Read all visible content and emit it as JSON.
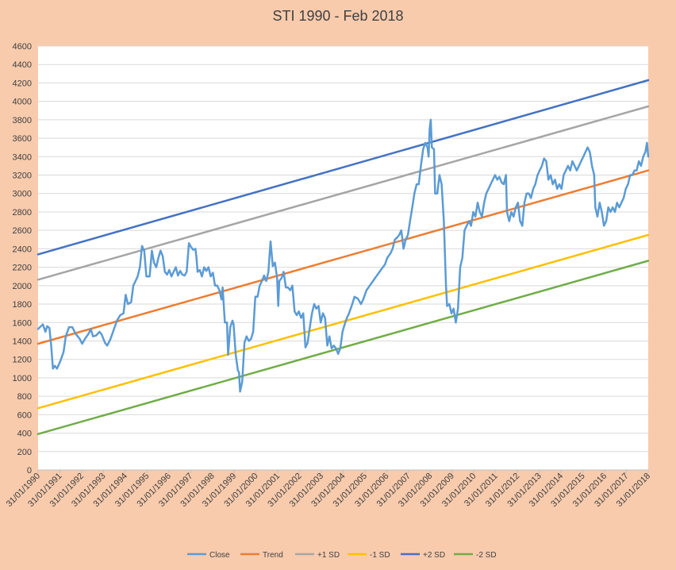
{
  "chart_data": {
    "type": "line",
    "title": "STI 1990 - Feb 2018",
    "xlabel": "",
    "ylabel": "",
    "ylim": [
      0,
      4600
    ],
    "y_ticks": [
      0,
      200,
      400,
      600,
      800,
      1000,
      1200,
      1400,
      1600,
      1800,
      2000,
      2200,
      2400,
      2600,
      2800,
      3000,
      3200,
      3400,
      3600,
      3800,
      4000,
      4200,
      4400,
      4600
    ],
    "x_tick_labels": [
      "31/01/1990",
      "31/01/1991",
      "31/01/1992",
      "31/01/1993",
      "31/01/1994",
      "31/01/1995",
      "31/01/1996",
      "31/01/1997",
      "31/01/1998",
      "31/01/1999",
      "31/01/2000",
      "31/01/2001",
      "31/01/2002",
      "31/01/2003",
      "31/01/2004",
      "31/01/2005",
      "31/01/2006",
      "31/01/2007",
      "31/01/2008",
      "31/01/2009",
      "31/01/2010",
      "31/01/2011",
      "31/01/2012",
      "31/01/2013",
      "31/01/2014",
      "31/01/2015",
      "31/01/2016",
      "31/01/2017",
      "31/01/2018"
    ],
    "xlim": [
      1990.08,
      2018.08
    ],
    "grid": "horizontal",
    "legend_position": "bottom",
    "series": [
      {
        "name": "Close",
        "color": "#5b9bd5",
        "points": [
          [
            1990.08,
            1530
          ],
          [
            1990.3,
            1580
          ],
          [
            1990.42,
            1500
          ],
          [
            1990.5,
            1560
          ],
          [
            1990.6,
            1540
          ],
          [
            1990.68,
            1350
          ],
          [
            1990.76,
            1100
          ],
          [
            1990.85,
            1130
          ],
          [
            1990.95,
            1100
          ],
          [
            1991.1,
            1180
          ],
          [
            1991.25,
            1280
          ],
          [
            1991.35,
            1450
          ],
          [
            1991.5,
            1550
          ],
          [
            1991.65,
            1550
          ],
          [
            1991.8,
            1480
          ],
          [
            1992.0,
            1420
          ],
          [
            1992.1,
            1370
          ],
          [
            1992.25,
            1430
          ],
          [
            1992.4,
            1480
          ],
          [
            1992.5,
            1530
          ],
          [
            1992.6,
            1450
          ],
          [
            1992.75,
            1460
          ],
          [
            1992.9,
            1500
          ],
          [
            1993.0,
            1470
          ],
          [
            1993.15,
            1380
          ],
          [
            1993.25,
            1350
          ],
          [
            1993.4,
            1420
          ],
          [
            1993.55,
            1520
          ],
          [
            1993.7,
            1620
          ],
          [
            1993.85,
            1680
          ],
          [
            1994.0,
            1700
          ],
          [
            1994.1,
            1900
          ],
          [
            1994.2,
            1800
          ],
          [
            1994.35,
            1820
          ],
          [
            1994.45,
            2000
          ],
          [
            1994.55,
            2050
          ],
          [
            1994.65,
            2100
          ],
          [
            1994.75,
            2200
          ],
          [
            1994.85,
            2430
          ],
          [
            1994.95,
            2380
          ],
          [
            1995.05,
            2100
          ],
          [
            1995.2,
            2100
          ],
          [
            1995.3,
            2380
          ],
          [
            1995.4,
            2250
          ],
          [
            1995.5,
            2200
          ],
          [
            1995.6,
            2300
          ],
          [
            1995.7,
            2380
          ],
          [
            1995.8,
            2320
          ],
          [
            1995.9,
            2150
          ],
          [
            1996.0,
            2120
          ],
          [
            1996.1,
            2170
          ],
          [
            1996.2,
            2100
          ],
          [
            1996.3,
            2150
          ],
          [
            1996.4,
            2200
          ],
          [
            1996.5,
            2110
          ],
          [
            1996.6,
            2160
          ],
          [
            1996.7,
            2120
          ],
          [
            1996.8,
            2110
          ],
          [
            1996.9,
            2150
          ],
          [
            1997.0,
            2460
          ],
          [
            1997.1,
            2420
          ],
          [
            1997.2,
            2390
          ],
          [
            1997.3,
            2400
          ],
          [
            1997.35,
            2300
          ],
          [
            1997.4,
            2150
          ],
          [
            1997.5,
            2170
          ],
          [
            1997.6,
            2100
          ],
          [
            1997.7,
            2200
          ],
          [
            1997.8,
            2160
          ],
          [
            1997.9,
            2200
          ],
          [
            1998.0,
            2100
          ],
          [
            1998.1,
            2140
          ],
          [
            1998.2,
            2000
          ],
          [
            1998.3,
            2000
          ],
          [
            1998.4,
            1950
          ],
          [
            1998.5,
            1850
          ],
          [
            1998.55,
            1980
          ],
          [
            1998.65,
            1600
          ],
          [
            1998.75,
            1600
          ],
          [
            1998.8,
            1250
          ],
          [
            1998.9,
            1550
          ],
          [
            1999.0,
            1620
          ],
          [
            1999.05,
            1580
          ],
          [
            1999.15,
            1250
          ],
          [
            1999.25,
            1080
          ],
          [
            1999.3,
            1060
          ],
          [
            1999.35,
            850
          ],
          [
            1999.45,
            960
          ],
          [
            1999.55,
            1380
          ],
          [
            1999.65,
            1450
          ],
          [
            1999.75,
            1400
          ],
          [
            1999.85,
            1420
          ],
          [
            1999.95,
            1500
          ],
          [
            2000.05,
            1880
          ],
          [
            2000.15,
            1880
          ],
          [
            2000.25,
            2000
          ],
          [
            2000.35,
            2050
          ],
          [
            2000.45,
            2110
          ],
          [
            2000.55,
            2050
          ],
          [
            2000.65,
            2150
          ],
          [
            2000.75,
            2480
          ],
          [
            2000.85,
            2210
          ],
          [
            2000.95,
            2250
          ],
          [
            2001.05,
            2080
          ],
          [
            2001.1,
            1780
          ],
          [
            2001.15,
            2050
          ],
          [
            2001.25,
            2080
          ],
          [
            2001.35,
            2150
          ],
          [
            2001.45,
            1980
          ],
          [
            2001.55,
            1980
          ],
          [
            2001.65,
            1950
          ],
          [
            2001.75,
            2000
          ],
          [
            2001.85,
            1720
          ],
          [
            2001.95,
            1680
          ],
          [
            2002.05,
            1720
          ],
          [
            2002.15,
            1650
          ],
          [
            2002.25,
            1700
          ],
          [
            2002.35,
            1330
          ],
          [
            2002.45,
            1380
          ],
          [
            2002.55,
            1550
          ],
          [
            2002.65,
            1700
          ],
          [
            2002.75,
            1800
          ],
          [
            2002.85,
            1750
          ],
          [
            2002.95,
            1780
          ],
          [
            2003.05,
            1600
          ],
          [
            2003.15,
            1700
          ],
          [
            2003.25,
            1650
          ],
          [
            2003.35,
            1350
          ],
          [
            2003.45,
            1450
          ],
          [
            2003.55,
            1320
          ],
          [
            2003.65,
            1350
          ],
          [
            2003.75,
            1320
          ],
          [
            2003.85,
            1260
          ],
          [
            2003.95,
            1320
          ],
          [
            2004.05,
            1500
          ],
          [
            2004.15,
            1580
          ],
          [
            2004.25,
            1650
          ],
          [
            2004.35,
            1700
          ],
          [
            2004.5,
            1800
          ],
          [
            2004.6,
            1880
          ],
          [
            2004.75,
            1860
          ],
          [
            2004.9,
            1800
          ],
          [
            2005.0,
            1850
          ],
          [
            2005.15,
            1950
          ],
          [
            2005.3,
            2000
          ],
          [
            2005.45,
            2050
          ],
          [
            2005.6,
            2100
          ],
          [
            2005.75,
            2150
          ],
          [
            2005.9,
            2200
          ],
          [
            2006.0,
            2230
          ],
          [
            2006.1,
            2300
          ],
          [
            2006.25,
            2350
          ],
          [
            2006.35,
            2400
          ],
          [
            2006.45,
            2500
          ],
          [
            2006.55,
            2520
          ],
          [
            2006.65,
            2550
          ],
          [
            2006.75,
            2600
          ],
          [
            2006.85,
            2400
          ],
          [
            2006.95,
            2500
          ],
          [
            2007.05,
            2550
          ],
          [
            2007.15,
            2700
          ],
          [
            2007.25,
            2850
          ],
          [
            2007.35,
            3000
          ],
          [
            2007.45,
            3100
          ],
          [
            2007.55,
            3100
          ],
          [
            2007.65,
            3300
          ],
          [
            2007.75,
            3480
          ],
          [
            2007.85,
            3550
          ],
          [
            2007.95,
            3500
          ],
          [
            2008.0,
            3400
          ],
          [
            2008.05,
            3700
          ],
          [
            2008.1,
            3800
          ],
          [
            2008.15,
            3500
          ],
          [
            2008.25,
            3480
          ],
          [
            2008.3,
            3000
          ],
          [
            2008.4,
            3000
          ],
          [
            2008.5,
            3200
          ],
          [
            2008.6,
            3100
          ],
          [
            2008.7,
            2700
          ],
          [
            2008.8,
            2000
          ],
          [
            2008.85,
            1780
          ],
          [
            2008.95,
            1800
          ],
          [
            2009.05,
            1700
          ],
          [
            2009.15,
            1750
          ],
          [
            2009.25,
            1600
          ],
          [
            2009.35,
            1750
          ],
          [
            2009.45,
            2200
          ],
          [
            2009.55,
            2300
          ],
          [
            2009.65,
            2600
          ],
          [
            2009.75,
            2650
          ],
          [
            2009.85,
            2700
          ],
          [
            2009.95,
            2650
          ],
          [
            2010.05,
            2800
          ],
          [
            2010.15,
            2750
          ],
          [
            2010.25,
            2900
          ],
          [
            2010.35,
            2800
          ],
          [
            2010.45,
            2750
          ],
          [
            2010.55,
            2900
          ],
          [
            2010.65,
            3000
          ],
          [
            2010.75,
            3050
          ],
          [
            2010.85,
            3100
          ],
          [
            2010.95,
            3150
          ],
          [
            2011.05,
            3200
          ],
          [
            2011.15,
            3150
          ],
          [
            2011.25,
            3180
          ],
          [
            2011.35,
            3120
          ],
          [
            2011.45,
            3100
          ],
          [
            2011.55,
            3200
          ],
          [
            2011.6,
            2800
          ],
          [
            2011.7,
            2700
          ],
          [
            2011.8,
            2800
          ],
          [
            2011.9,
            2750
          ],
          [
            2012.0,
            2850
          ],
          [
            2012.1,
            2900
          ],
          [
            2012.2,
            2700
          ],
          [
            2012.3,
            2650
          ],
          [
            2012.4,
            2900
          ],
          [
            2012.5,
            3000
          ],
          [
            2012.6,
            3000
          ],
          [
            2012.7,
            2950
          ],
          [
            2012.8,
            3050
          ],
          [
            2012.9,
            3100
          ],
          [
            2013.0,
            3200
          ],
          [
            2013.1,
            3250
          ],
          [
            2013.2,
            3300
          ],
          [
            2013.3,
            3380
          ],
          [
            2013.4,
            3350
          ],
          [
            2013.5,
            3150
          ],
          [
            2013.6,
            3200
          ],
          [
            2013.7,
            3100
          ],
          [
            2013.8,
            3150
          ],
          [
            2013.9,
            3050
          ],
          [
            2014.0,
            3100
          ],
          [
            2014.1,
            3050
          ],
          [
            2014.2,
            3200
          ],
          [
            2014.3,
            3250
          ],
          [
            2014.4,
            3300
          ],
          [
            2014.5,
            3250
          ],
          [
            2014.6,
            3350
          ],
          [
            2014.7,
            3300
          ],
          [
            2014.8,
            3250
          ],
          [
            2014.9,
            3300
          ],
          [
            2015.0,
            3350
          ],
          [
            2015.1,
            3400
          ],
          [
            2015.2,
            3450
          ],
          [
            2015.3,
            3500
          ],
          [
            2015.4,
            3450
          ],
          [
            2015.5,
            3300
          ],
          [
            2015.6,
            3200
          ],
          [
            2015.65,
            2850
          ],
          [
            2015.75,
            2750
          ],
          [
            2015.85,
            2900
          ],
          [
            2015.95,
            2800
          ],
          [
            2016.05,
            2650
          ],
          [
            2016.15,
            2700
          ],
          [
            2016.25,
            2850
          ],
          [
            2016.35,
            2800
          ],
          [
            2016.45,
            2850
          ],
          [
            2016.55,
            2800
          ],
          [
            2016.65,
            2900
          ],
          [
            2016.75,
            2850
          ],
          [
            2016.85,
            2900
          ],
          [
            2016.95,
            2950
          ],
          [
            2017.05,
            3050
          ],
          [
            2017.15,
            3100
          ],
          [
            2017.25,
            3200
          ],
          [
            2017.35,
            3200
          ],
          [
            2017.45,
            3250
          ],
          [
            2017.55,
            3250
          ],
          [
            2017.65,
            3350
          ],
          [
            2017.75,
            3300
          ],
          [
            2017.85,
            3400
          ],
          [
            2017.95,
            3450
          ],
          [
            2018.02,
            3550
          ],
          [
            2018.08,
            3400
          ]
        ]
      },
      {
        "name": "Trend",
        "color": "#ed7d31",
        "points": [
          [
            1990.08,
            1370
          ],
          [
            2018.08,
            3250
          ]
        ]
      },
      {
        "name": "+1 SD",
        "color": "#a5a5a5",
        "points": [
          [
            1990.08,
            2065
          ],
          [
            2018.08,
            3945
          ]
        ]
      },
      {
        "name": "-1 SD",
        "color": "#ffc000",
        "points": [
          [
            1990.08,
            670
          ],
          [
            2018.08,
            2550
          ]
        ]
      },
      {
        "name": "+2 SD",
        "color": "#4472c4",
        "points": [
          [
            1990.08,
            2340
          ],
          [
            2018.08,
            4230
          ]
        ]
      },
      {
        "name": "-2 SD",
        "color": "#70ad47",
        "points": [
          [
            1990.08,
            390
          ],
          [
            2018.08,
            2270
          ]
        ]
      }
    ]
  }
}
